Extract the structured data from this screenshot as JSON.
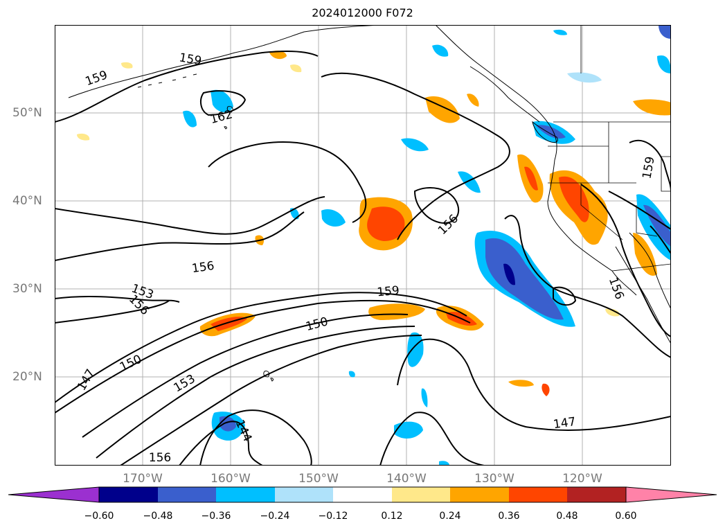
{
  "title": "2024012000 F072",
  "lat_labels": [
    "50°N",
    "40°N",
    "30°N",
    "20°N"
  ],
  "lon_labels": [
    "170°W",
    "160°W",
    "150°W",
    "140°W",
    "130°W",
    "120°W"
  ],
  "contour_labels": [
    "159",
    "159",
    "162",
    "153",
    "156",
    "156",
    "150",
    "153",
    "147",
    "150",
    "159",
    "156",
    "156",
    "147",
    "144",
    "156",
    "159"
  ],
  "colorbar": {
    "ticks": [
      "−0.60",
      "−0.48",
      "−0.36",
      "−0.24",
      "−0.12",
      "0.12",
      "0.24",
      "0.36",
      "0.48",
      "0.60"
    ],
    "colors": [
      "#9b30d0",
      "#00008b",
      "#3a5fcd",
      "#00bfff",
      "#afe2fa",
      "#ffffff",
      "#ffe88a",
      "#ffa500",
      "#ff4500",
      "#b22222",
      "#ff82a8"
    ]
  }
}
